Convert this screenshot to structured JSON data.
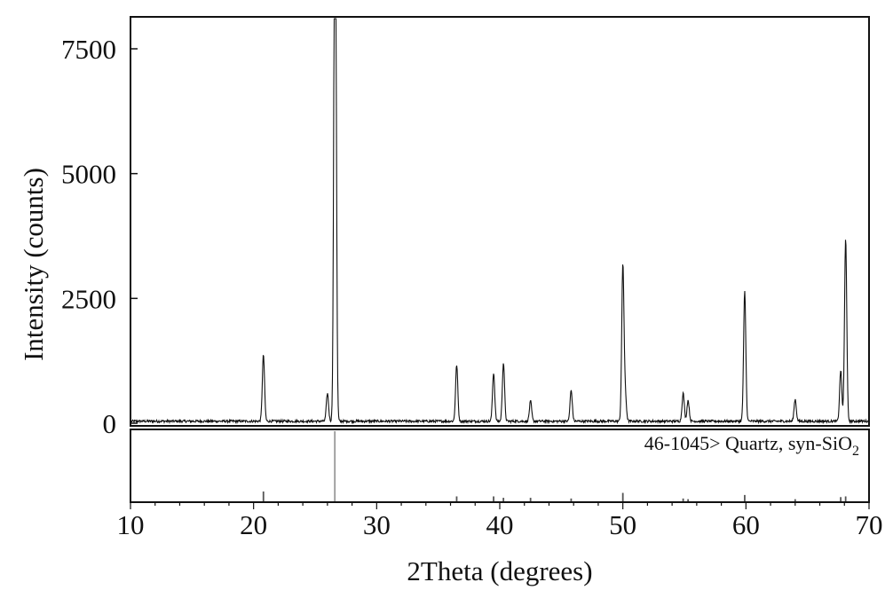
{
  "chart_data": {
    "type": "line",
    "xlabel": "2Theta (degrees)",
    "ylabel": "Intensity (counts)",
    "xlim": [
      10,
      70
    ],
    "ylim": [
      0,
      8000
    ],
    "x_ticks": [
      "10",
      "20",
      "30",
      "40",
      "50",
      "60",
      "70"
    ],
    "y_ticks": [
      "0",
      "2500",
      "5000",
      "7500"
    ],
    "grid": false,
    "baseline": 40,
    "peaks": [
      {
        "x": 20.8,
        "y": 1330
      },
      {
        "x": 26.0,
        "y": 560
      },
      {
        "x": 26.6,
        "y": 7750
      },
      {
        "x": 26.65,
        "y": 5200
      },
      {
        "x": 36.5,
        "y": 1130
      },
      {
        "x": 39.5,
        "y": 970
      },
      {
        "x": 40.3,
        "y": 1170
      },
      {
        "x": 42.5,
        "y": 400
      },
      {
        "x": 45.8,
        "y": 620
      },
      {
        "x": 50.0,
        "y": 3130
      },
      {
        "x": 50.2,
        "y": 500
      },
      {
        "x": 54.9,
        "y": 560
      },
      {
        "x": 55.3,
        "y": 420
      },
      {
        "x": 59.9,
        "y": 2600
      },
      {
        "x": 64.0,
        "y": 440
      },
      {
        "x": 67.7,
        "y": 1020
      },
      {
        "x": 68.1,
        "y": 3680
      }
    ],
    "reference": {
      "label": "46-1045> Quartz, syn-SiO",
      "label_sub": "2",
      "lines": [
        {
          "x": 20.8,
          "rel": 0.14
        },
        {
          "x": 26.6,
          "rel": 1.0
        },
        {
          "x": 36.5,
          "rel": 0.07
        },
        {
          "x": 39.5,
          "rel": 0.07
        },
        {
          "x": 40.3,
          "rel": 0.05
        },
        {
          "x": 42.5,
          "rel": 0.05
        },
        {
          "x": 45.8,
          "rel": 0.04
        },
        {
          "x": 50.0,
          "rel": 0.12
        },
        {
          "x": 54.9,
          "rel": 0.04
        },
        {
          "x": 55.3,
          "rel": 0.03
        },
        {
          "x": 59.9,
          "rel": 0.09
        },
        {
          "x": 64.0,
          "rel": 0.03
        },
        {
          "x": 67.7,
          "rel": 0.06
        },
        {
          "x": 68.1,
          "rel": 0.07
        }
      ]
    }
  }
}
